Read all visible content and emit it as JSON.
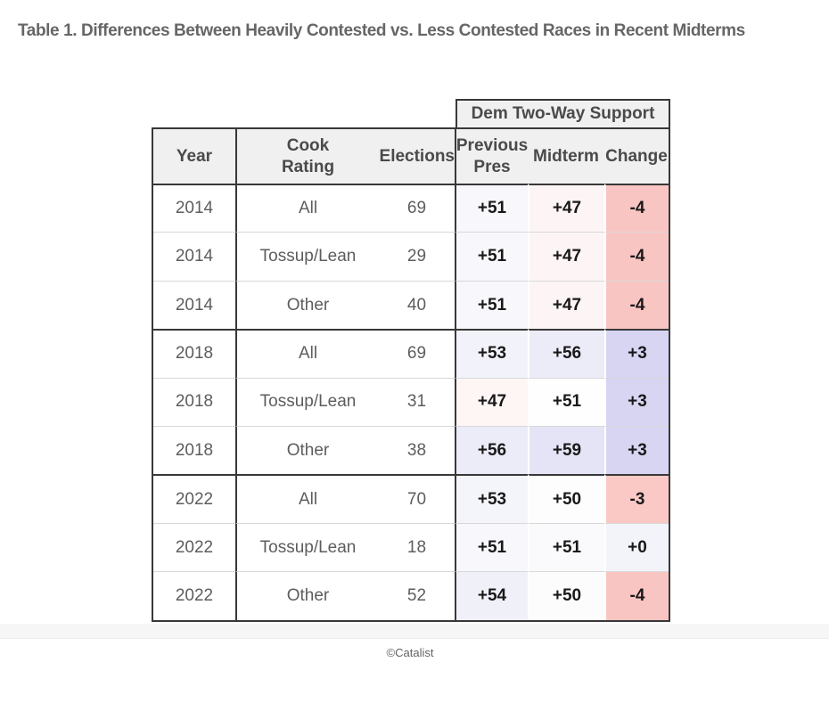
{
  "title": "Table 1. Differences Between Heavily Contested vs. Less Contested Races in Recent Midterms",
  "table": {
    "span_header": "Dem Two-Way Support",
    "columns": [
      {
        "label": "Year"
      },
      {
        "label": "Cook\nRating"
      },
      {
        "label": "Elections"
      },
      {
        "label": "Previous\nPres"
      },
      {
        "label": "Midterm"
      },
      {
        "label": "Change"
      }
    ],
    "rows": [
      {
        "year": "2014",
        "rating": "All",
        "elections": "69",
        "prev": "+51",
        "mid": "+47",
        "chg": "-4",
        "group_start": true,
        "colors": {
          "prev": "#f7f7fc",
          "mid": "#fdf5f5",
          "chg": "#f9c5c2"
        }
      },
      {
        "year": "2014",
        "rating": "Tossup/Lean",
        "elections": "29",
        "prev": "+51",
        "mid": "+47",
        "chg": "-4",
        "group_start": false,
        "colors": {
          "prev": "#f7f7fc",
          "mid": "#fdf5f5",
          "chg": "#f9c5c2"
        }
      },
      {
        "year": "2014",
        "rating": "Other",
        "elections": "40",
        "prev": "+51",
        "mid": "+47",
        "chg": "-4",
        "group_start": false,
        "colors": {
          "prev": "#f7f7fc",
          "mid": "#fdf5f5",
          "chg": "#f9c5c2"
        }
      },
      {
        "year": "2018",
        "rating": "All",
        "elections": "69",
        "prev": "+53",
        "mid": "+56",
        "chg": "+3",
        "group_start": true,
        "colors": {
          "prev": "#f2f2fa",
          "mid": "#ecebf8",
          "chg": "#d7d5f2"
        }
      },
      {
        "year": "2018",
        "rating": "Tossup/Lean",
        "elections": "31",
        "prev": "+47",
        "mid": "+51",
        "chg": "+3",
        "group_start": false,
        "colors": {
          "prev": "#fdf6f5",
          "mid": "#fefefe",
          "chg": "#d7d5f2"
        }
      },
      {
        "year": "2018",
        "rating": "Other",
        "elections": "38",
        "prev": "+56",
        "mid": "+59",
        "chg": "+3",
        "group_start": false,
        "colors": {
          "prev": "#ecebf8",
          "mid": "#e5e4f6",
          "chg": "#d7d5f2"
        }
      },
      {
        "year": "2022",
        "rating": "All",
        "elections": "70",
        "prev": "+53",
        "mid": "+50",
        "chg": "-3",
        "group_start": true,
        "colors": {
          "prev": "#f4f4fb",
          "mid": "#fdfdfe",
          "chg": "#fac8c5"
        }
      },
      {
        "year": "2022",
        "rating": "Tossup/Lean",
        "elections": "18",
        "prev": "+51",
        "mid": "+51",
        "chg": "+0",
        "group_start": false,
        "colors": {
          "prev": "#f7f7fc",
          "mid": "#fafafd",
          "chg": "#f3f4fa"
        }
      },
      {
        "year": "2022",
        "rating": "Other",
        "elections": "52",
        "prev": "+54",
        "mid": "+50",
        "chg": "-4",
        "group_start": false,
        "colors": {
          "prev": "#f0f0f9",
          "mid": "#fcfcfd",
          "chg": "#f9c5c2"
        }
      }
    ]
  },
  "footer": {
    "attribution": "©Catalist"
  },
  "colors": {
    "border_dark": "#383838",
    "border_light": "#d8d8d8",
    "header_bg": "#f0f0f0",
    "negative_cell": "#f9c5c2",
    "positive_cell": "#d7d5f2",
    "text_gray": "#5d5d5d",
    "text_dark": "#191919",
    "title_gray": "#666666"
  },
  "chart_data": {
    "type": "table",
    "title": "Table 1. Differences Between Heavily Contested vs. Less Contested Races in Recent Midterms",
    "column_groups": [
      {
        "label": "Dem Two-Way Support",
        "columns": [
          "Previous Pres",
          "Midterm",
          "Change"
        ]
      }
    ],
    "columns": [
      "Year",
      "Cook Rating",
      "Elections",
      "Previous Pres",
      "Midterm",
      "Change"
    ],
    "rows": [
      [
        "2014",
        "All",
        69,
        "+51",
        "+47",
        "-4"
      ],
      [
        "2014",
        "Tossup/Lean",
        29,
        "+51",
        "+47",
        "-4"
      ],
      [
        "2014",
        "Other",
        40,
        "+51",
        "+47",
        "-4"
      ],
      [
        "2018",
        "All",
        69,
        "+53",
        "+56",
        "+3"
      ],
      [
        "2018",
        "Tossup/Lean",
        31,
        "+47",
        "+51",
        "+3"
      ],
      [
        "2018",
        "Other",
        38,
        "+56",
        "+59",
        "+3"
      ],
      [
        "2022",
        "All",
        70,
        "+53",
        "+50",
        "-3"
      ],
      [
        "2022",
        "Tossup/Lean",
        18,
        "+51",
        "+51",
        "+0"
      ],
      [
        "2022",
        "Other",
        52,
        "+54",
        "+50",
        "-4"
      ]
    ],
    "attribution": "©Catalist",
    "layout_hints": "Support cells shaded on diverging scale: blue tint = Dem gain/above 50, red/pink tint = Dem loss/below 50; thick borders group rows by year"
  }
}
